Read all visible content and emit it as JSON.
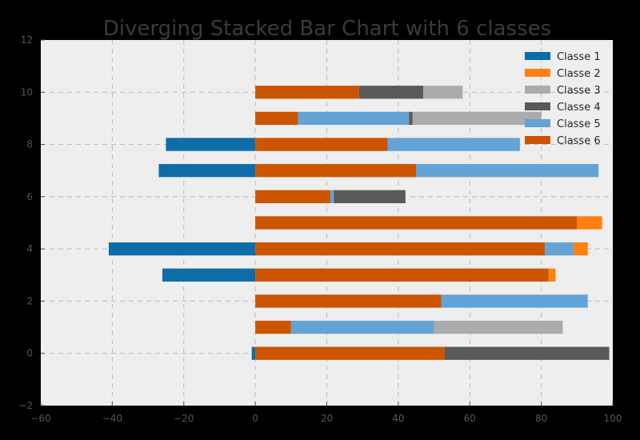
{
  "chart_data": {
    "type": "bar",
    "orientation": "horizontal",
    "stacking": "diverging",
    "title": "Diverging Stacked Bar Chart with 6 classes",
    "xlabel": "",
    "ylabel": "",
    "xlim": [
      -60,
      100
    ],
    "ylim": [
      -2,
      12
    ],
    "xticks": [
      -60,
      -40,
      -20,
      0,
      20,
      40,
      60,
      80,
      100
    ],
    "yticks": [
      -2,
      0,
      2,
      4,
      6,
      8,
      10,
      12
    ],
    "grid": true,
    "legend_position": "top-right",
    "categories": [
      0,
      1,
      2,
      3,
      4,
      5,
      6,
      7,
      8,
      9,
      10
    ],
    "negative_series": [
      {
        "name": "Classe 1",
        "color": "#0e6ca8",
        "values": [
          -1,
          0,
          0,
          -26,
          -41,
          0,
          0,
          -27,
          -25,
          0,
          0
        ]
      }
    ],
    "positive_series": [
      {
        "name": "Classe 6",
        "color": "#cc5500",
        "values": [
          53,
          10,
          52,
          82,
          81,
          90,
          21,
          45,
          37,
          12,
          29
        ]
      },
      {
        "name": "Classe 5",
        "color": "#63a3d6",
        "values": [
          0,
          40,
          41,
          0,
          8,
          0,
          1,
          51,
          37,
          31,
          0
        ]
      },
      {
        "name": "Classe 2",
        "color": "#ff800e",
        "values": [
          0,
          0,
          0,
          2,
          4,
          7,
          0,
          0,
          0,
          0,
          0
        ]
      },
      {
        "name": "Classe 4",
        "color": "#595959",
        "values": [
          46,
          0,
          0,
          0,
          0,
          0,
          20,
          0,
          0,
          1,
          18
        ]
      },
      {
        "name": "Classe 3",
        "color": "#ababab",
        "values": [
          0,
          36,
          0,
          0,
          0,
          0,
          0,
          0,
          0,
          36,
          11
        ]
      }
    ],
    "legend": [
      {
        "name": "Classe 1",
        "color": "#0e6ca8"
      },
      {
        "name": "Classe 2",
        "color": "#ff800e"
      },
      {
        "name": "Classe 3",
        "color": "#ababab"
      },
      {
        "name": "Classe 4",
        "color": "#595959"
      },
      {
        "name": "Classe 5",
        "color": "#63a3d6"
      },
      {
        "name": "Classe 6",
        "color": "#cc5500"
      }
    ]
  },
  "colors": {
    "figure_background": "#000000",
    "plot_background": "#eeeeee",
    "grid": "#bbbbbb"
  }
}
